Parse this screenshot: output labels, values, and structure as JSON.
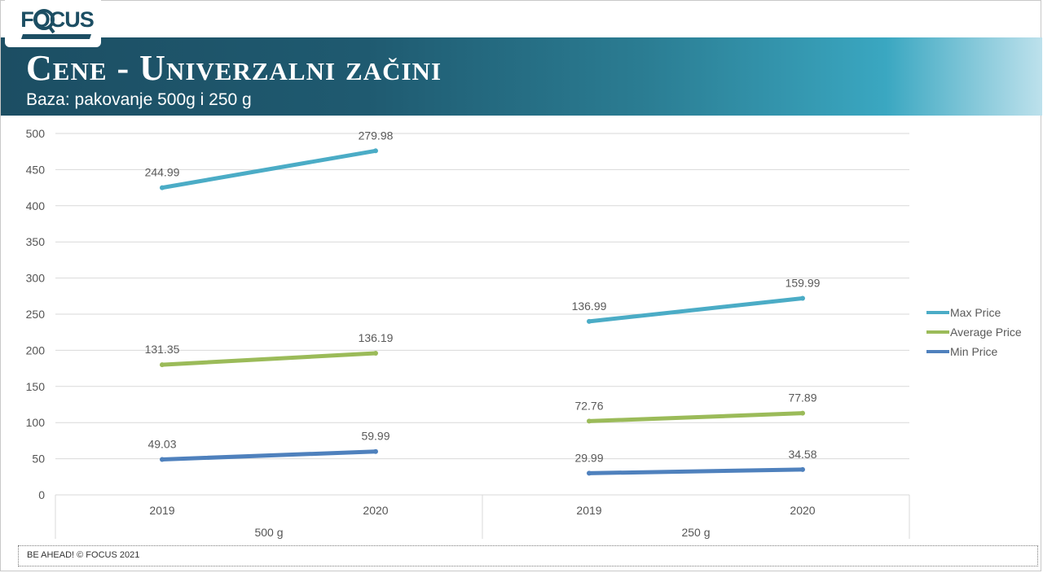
{
  "logo": {
    "text": "FOCUS"
  },
  "header": {
    "title": "Cene - Univerzalni začini",
    "subtitle": "Baza: pakovanje 500g i 250 g"
  },
  "footer": {
    "text": "BE AHEAD! © FOCUS 2021"
  },
  "colors": {
    "max_price": "#4bacc6",
    "average_price": "#9bbb59",
    "min_price": "#4f81bd",
    "gridline": "#d9d9d9",
    "header_dark": "#1c4e63",
    "header_light": "#bde1ec"
  },
  "chart_data": {
    "type": "line",
    "title": "",
    "xlabel": "",
    "ylabel": "",
    "ylim": [
      0,
      500
    ],
    "yticks": [
      0,
      50,
      100,
      150,
      200,
      250,
      300,
      350,
      400,
      450,
      500
    ],
    "grid": true,
    "legend_position": "right",
    "groups": [
      {
        "name": "500  g",
        "categories": [
          "2019",
          "2020"
        ]
      },
      {
        "name": "250 g",
        "categories": [
          "2019",
          "2020"
        ]
      }
    ],
    "series": [
      {
        "name": "Max Price",
        "color_key": "max_price",
        "segments": [
          {
            "group": "500  g",
            "y": [
              425,
              476
            ],
            "labels": [
              "244.99",
              "279.98"
            ]
          },
          {
            "group": "250 g",
            "y": [
              240,
              272
            ],
            "labels": [
              "136.99",
              "159.99"
            ]
          }
        ]
      },
      {
        "name": "Average Price",
        "color_key": "average_price",
        "segments": [
          {
            "group": "500  g",
            "y": [
              180,
              196
            ],
            "labels": [
              "131.35",
              "136.19"
            ]
          },
          {
            "group": "250 g",
            "y": [
              102,
              113
            ],
            "labels": [
              "72.76",
              "77.89"
            ]
          }
        ]
      },
      {
        "name": "Min Price",
        "color_key": "min_price",
        "segments": [
          {
            "group": "500  g",
            "y": [
              49,
              60
            ],
            "labels": [
              "49.03",
              "59.99"
            ]
          },
          {
            "group": "250 g",
            "y": [
              30,
              35
            ],
            "labels": [
              "29.99",
              "34.58"
            ]
          }
        ]
      }
    ]
  }
}
